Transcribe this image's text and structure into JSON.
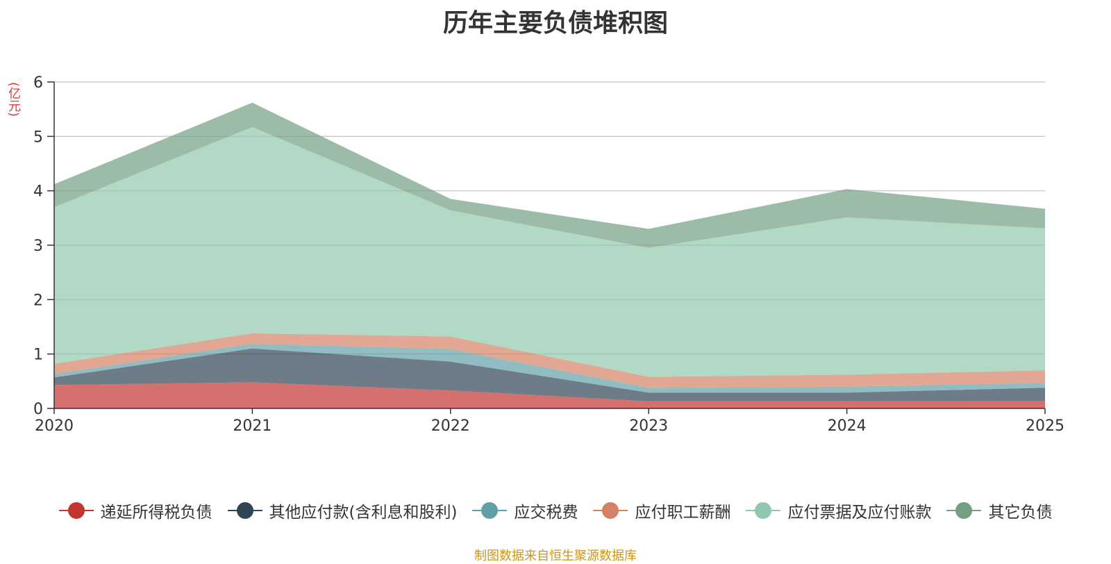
{
  "chart_data": {
    "type": "area",
    "stacked": true,
    "title": "历年主要负债堆积图",
    "ylabel": "(亿元)",
    "x": [
      "2020",
      "2021",
      "2022",
      "2023",
      "2024",
      "2025"
    ],
    "ylim": [
      0,
      6
    ],
    "yticks": [
      0,
      1,
      2,
      3,
      4,
      5,
      6
    ],
    "grid": true,
    "legend_position": "bottom",
    "series": [
      {
        "name": "递延所得税负债",
        "color": "#c23531",
        "values": [
          0.43,
          0.48,
          0.33,
          0.13,
          0.13,
          0.13
        ]
      },
      {
        "name": "其他应付款(含利息和股利)",
        "color": "#2f4554",
        "values": [
          0.14,
          0.62,
          0.53,
          0.16,
          0.16,
          0.25
        ]
      },
      {
        "name": "应交税费",
        "color": "#61a0a8",
        "values": [
          0.06,
          0.09,
          0.23,
          0.09,
          0.11,
          0.09
        ]
      },
      {
        "name": "应付职工薪酬",
        "color": "#d48265",
        "values": [
          0.19,
          0.19,
          0.23,
          0.2,
          0.22,
          0.23
        ]
      },
      {
        "name": "应付票据及应付账款",
        "color": "#91c7ae",
        "values": [
          2.88,
          3.79,
          2.32,
          2.37,
          2.89,
          2.61
        ]
      },
      {
        "name": "其它负债",
        "color": "#749f83",
        "values": [
          0.42,
          0.45,
          0.21,
          0.35,
          0.52,
          0.36
        ]
      }
    ]
  },
  "source_note": "制图数据来自恒生聚源数据库"
}
